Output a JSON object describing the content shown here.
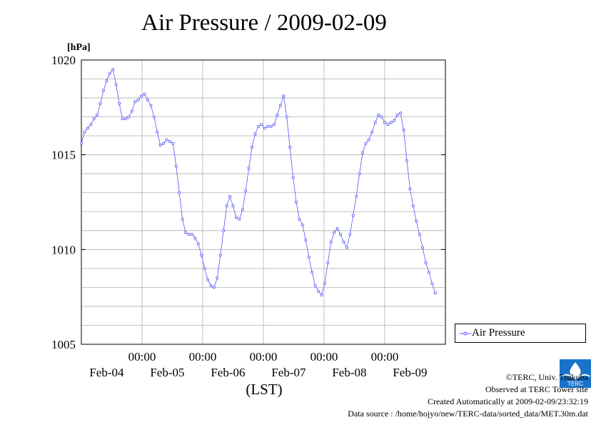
{
  "chart_data": {
    "type": "line",
    "title": "Air Pressure / 2009-02-09",
    "ylabel": "[hPa]",
    "xlabel": "(LST)",
    "ylim": [
      1005,
      1020
    ],
    "yticks": [
      "1020",
      "1015",
      "1010",
      "1005"
    ],
    "xticks": [
      "00:00",
      "00:00",
      "00:00",
      "00:00",
      "00:00"
    ],
    "date_labels": [
      "Feb-04",
      "Feb-05",
      "Feb-06",
      "Feb-07",
      "Feb-08",
      "Feb-09"
    ],
    "grid": true,
    "legend_position": "right",
    "color": "#5555ff",
    "series": [
      {
        "name": "Air Pressure",
        "interval_hours": 0.5,
        "x_start": "2009-02-04 00:00",
        "values": [
          1015.6,
          1016.2,
          1016.4,
          1016.6,
          1016.9,
          1017.1,
          1017.7,
          1018.4,
          1018.9,
          1019.3,
          1019.5,
          1018.7,
          1017.7,
          1016.9,
          1016.9,
          1017.0,
          1017.3,
          1017.8,
          1017.9,
          1018.1,
          1018.2,
          1017.9,
          1017.6,
          1017.0,
          1016.2,
          1015.5,
          1015.6,
          1015.8,
          1015.7,
          1015.6,
          1014.4,
          1013.0,
          1011.6,
          1010.9,
          1010.8,
          1010.8,
          1010.6,
          1010.3,
          1009.7,
          1009.0,
          1008.4,
          1008.1,
          1008.0,
          1008.5,
          1009.7,
          1011.0,
          1012.3,
          1012.8,
          1012.3,
          1011.7,
          1011.6,
          1012.1,
          1013.1,
          1014.3,
          1015.4,
          1016.1,
          1016.5,
          1016.6,
          1016.4,
          1016.5,
          1016.5,
          1016.6,
          1017.1,
          1017.6,
          1018.1,
          1017.0,
          1015.4,
          1013.8,
          1012.5,
          1011.6,
          1011.3,
          1010.5,
          1009.6,
          1008.8,
          1008.1,
          1007.8,
          1007.6,
          1008.2,
          1009.3,
          1010.4,
          1010.9,
          1011.1,
          1010.8,
          1010.4,
          1010.1,
          1010.8,
          1011.8,
          1012.8,
          1014.0,
          1015.1,
          1015.6,
          1015.8,
          1016.2,
          1016.7,
          1017.1,
          1017.0,
          1016.7,
          1016.6,
          1016.7,
          1016.8,
          1017.1,
          1017.2,
          1016.3,
          1014.7,
          1013.2,
          1012.3,
          1011.5,
          1010.8,
          1010.1,
          1009.3,
          1008.8,
          1008.2,
          1007.7
        ]
      }
    ]
  },
  "credits": {
    "copyright": "©TERC, Univ. Tsukuba",
    "observed": "Observed at TERC Tower site",
    "created": "Created Automatically at 2009-02-09/23:32:19",
    "source": "Data source : /home/hojyo/new/TERC-data/sorted_data/MET.30m.dat"
  },
  "logo": {
    "text": "TERC",
    "color": "#1a73c9"
  }
}
